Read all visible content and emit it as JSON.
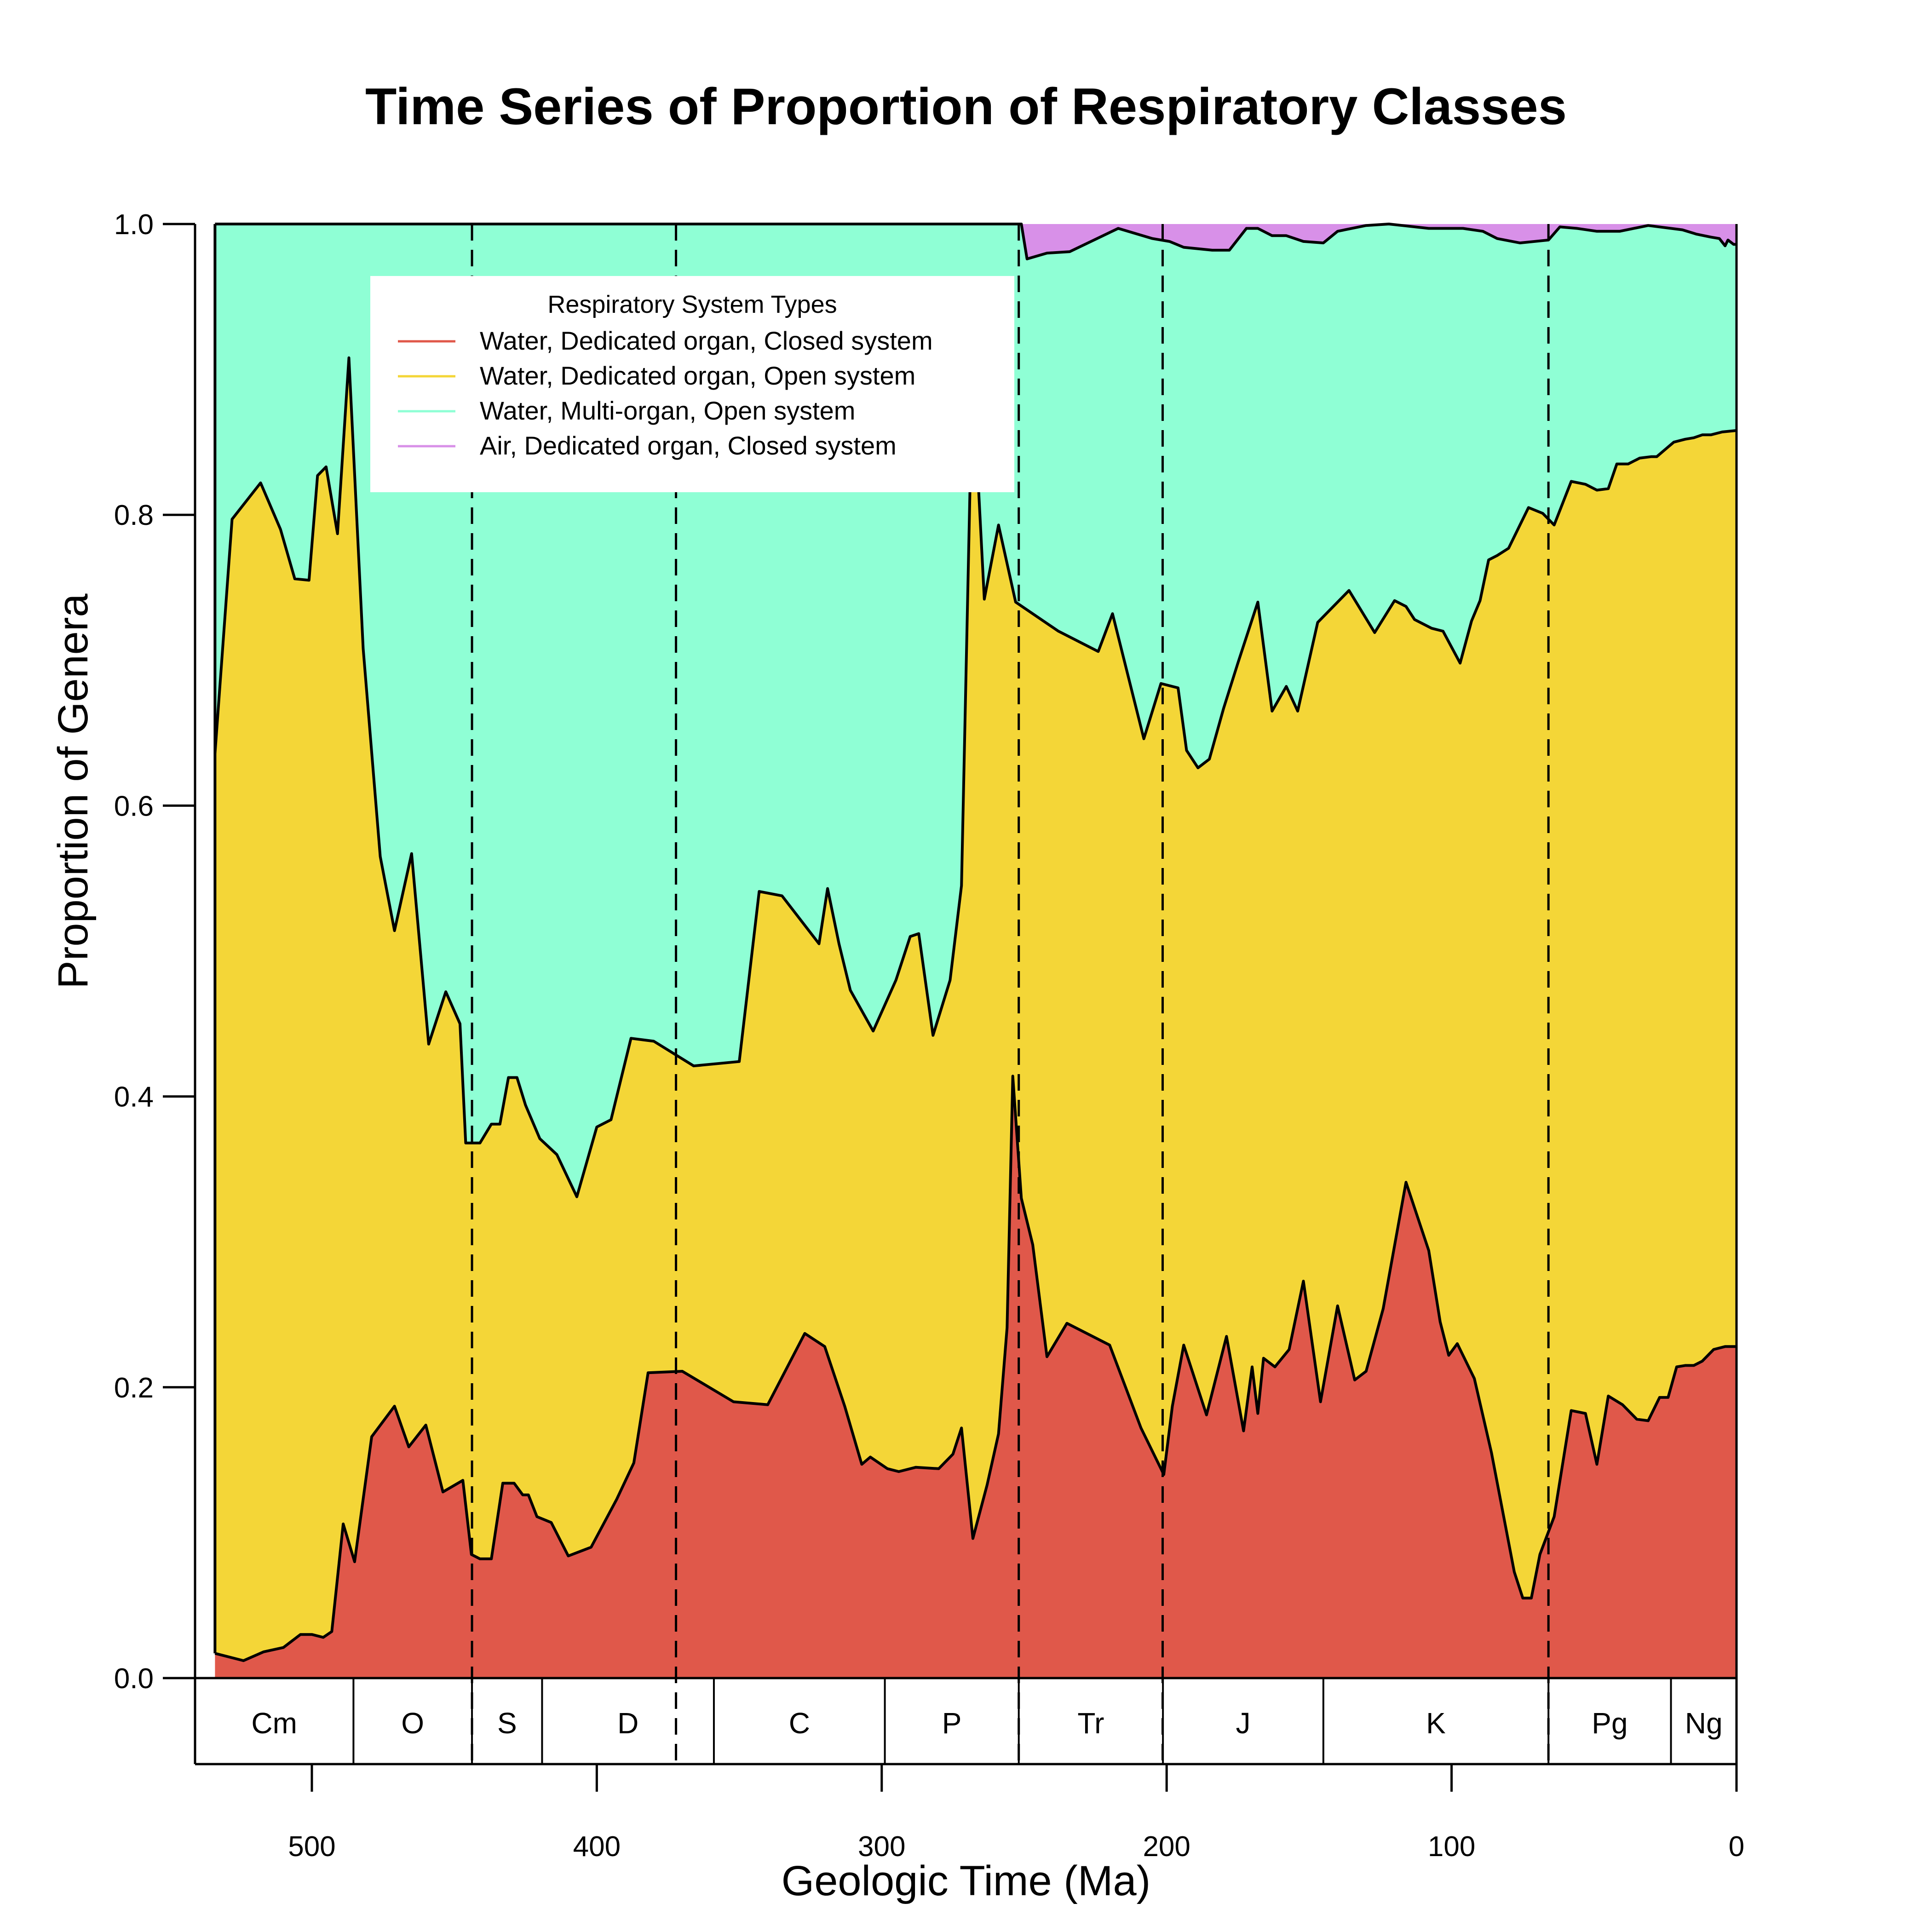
{
  "chart_data": {
    "type": "area",
    "stacked": true,
    "title": "Time Series of Proportion of Respiratory Classes",
    "xlabel": "Geologic Time (Ma)",
    "ylabel": "Proportion of Genera",
    "xlim": [
      541,
      0
    ],
    "ylim": [
      0,
      1
    ],
    "x_ticks": [
      500,
      400,
      300,
      200,
      100,
      0
    ],
    "y_ticks": [
      "0.0",
      "0.2",
      "0.4",
      "0.6",
      "0.8",
      "1.0"
    ],
    "legend": {
      "title": "Respiratory System Types",
      "position": "top-left",
      "entries": [
        "Water, Dedicated organ, Closed system",
        "Water, Dedicated organ, Open system",
        "Water, Multi-organ, Open system",
        "Air, Dedicated organ, Closed system"
      ]
    },
    "series": [
      {
        "name": "Water, Dedicated organ, Closed system",
        "color": "#E0584A"
      },
      {
        "name": "Water, Dedicated organ, Open system",
        "color": "#F4D637"
      },
      {
        "name": "Water, Multi-organ, Open system",
        "color": "#8FFFD5"
      },
      {
        "name": "Air, Dedicated organ, Closed system",
        "color": "#D890E8"
      }
    ],
    "cumulative_boundaries": {
      "red_top": [
        [
          534,
          0.017
        ],
        [
          524,
          0.012
        ],
        [
          517,
          0.018
        ],
        [
          510,
          0.021
        ],
        [
          504,
          0.03
        ],
        [
          500,
          0.03
        ],
        [
          496,
          0.028
        ],
        [
          493,
          0.032
        ],
        [
          489,
          0.106
        ],
        [
          485,
          0.08
        ],
        [
          479,
          0.166
        ],
        [
          471,
          0.187
        ],
        [
          466,
          0.159
        ],
        [
          460,
          0.174
        ],
        [
          454,
          0.128
        ],
        [
          447,
          0.136
        ],
        [
          444,
          0.085
        ],
        [
          441,
          0.082
        ],
        [
          437,
          0.082
        ],
        [
          433,
          0.134
        ],
        [
          429,
          0.134
        ],
        [
          426,
          0.126
        ],
        [
          424,
          0.126
        ],
        [
          421,
          0.111
        ],
        [
          416,
          0.107
        ],
        [
          410,
          0.084
        ],
        [
          402,
          0.09
        ],
        [
          393,
          0.123
        ],
        [
          387,
          0.148
        ],
        [
          382,
          0.21
        ],
        [
          370,
          0.211
        ],
        [
          352,
          0.19
        ],
        [
          340,
          0.188
        ],
        [
          327,
          0.237
        ],
        [
          320,
          0.228
        ],
        [
          313,
          0.187
        ],
        [
          307,
          0.147
        ],
        [
          304,
          0.152
        ],
        [
          298,
          0.144
        ],
        [
          294,
          0.142
        ],
        [
          288,
          0.145
        ],
        [
          280,
          0.144
        ],
        [
          275,
          0.154
        ],
        [
          272,
          0.172
        ],
        [
          268,
          0.096
        ],
        [
          263,
          0.133
        ],
        [
          259,
          0.168
        ],
        [
          256,
          0.241
        ],
        [
          254,
          0.414
        ],
        [
          251,
          0.33
        ],
        [
          247,
          0.298
        ],
        [
          242,
          0.221
        ],
        [
          235,
          0.244
        ],
        [
          220,
          0.229
        ],
        [
          209,
          0.172
        ],
        [
          201,
          0.14
        ],
        [
          198,
          0.187
        ],
        [
          194,
          0.229
        ],
        [
          186,
          0.181
        ],
        [
          179,
          0.235
        ],
        [
          173,
          0.17
        ],
        [
          170,
          0.214
        ],
        [
          168,
          0.182
        ],
        [
          166,
          0.22
        ],
        [
          162,
          0.214
        ],
        [
          157,
          0.226
        ],
        [
          152,
          0.273
        ],
        [
          146,
          0.19
        ],
        [
          140,
          0.256
        ],
        [
          134,
          0.205
        ],
        [
          130,
          0.211
        ],
        [
          124,
          0.254
        ],
        [
          116,
          0.341
        ],
        [
          108,
          0.294
        ],
        [
          104,
          0.245
        ],
        [
          101,
          0.222
        ],
        [
          98,
          0.23
        ],
        [
          92,
          0.206
        ],
        [
          86,
          0.155
        ],
        [
          78,
          0.073
        ],
        [
          75,
          0.055
        ],
        [
          72,
          0.055
        ],
        [
          69,
          0.085
        ],
        [
          64,
          0.111
        ],
        [
          58,
          0.184
        ],
        [
          53,
          0.182
        ],
        [
          49,
          0.147
        ],
        [
          45,
          0.194
        ],
        [
          40,
          0.188
        ],
        [
          35,
          0.178
        ],
        [
          31,
          0.177
        ],
        [
          27,
          0.193
        ],
        [
          24,
          0.193
        ],
        [
          21,
          0.214
        ],
        [
          18,
          0.215
        ],
        [
          15,
          0.215
        ],
        [
          12,
          0.218
        ],
        [
          8,
          0.226
        ],
        [
          4,
          0.228
        ],
        [
          0,
          0.228
        ]
      ],
      "yellow_top": [
        [
          534,
          0.636
        ],
        [
          528,
          0.797
        ],
        [
          518,
          0.822
        ],
        [
          511,
          0.79
        ],
        [
          506,
          0.756
        ],
        [
          501,
          0.755
        ],
        [
          498,
          0.827
        ],
        [
          495,
          0.833
        ],
        [
          491,
          0.787
        ],
        [
          487,
          0.908
        ],
        [
          482,
          0.708
        ],
        [
          476,
          0.565
        ],
        [
          471,
          0.514
        ],
        [
          465,
          0.567
        ],
        [
          459,
          0.436
        ],
        [
          453,
          0.472
        ],
        [
          448,
          0.45
        ],
        [
          446,
          0.368
        ],
        [
          441,
          0.368
        ],
        [
          437,
          0.381
        ],
        [
          434,
          0.381
        ],
        [
          431,
          0.413
        ],
        [
          428,
          0.413
        ],
        [
          425,
          0.394
        ],
        [
          420,
          0.371
        ],
        [
          414,
          0.36
        ],
        [
          407,
          0.331
        ],
        [
          400,
          0.379
        ],
        [
          395,
          0.384
        ],
        [
          388,
          0.44
        ],
        [
          380,
          0.438
        ],
        [
          366,
          0.421
        ],
        [
          350,
          0.424
        ],
        [
          343,
          0.541
        ],
        [
          335,
          0.538
        ],
        [
          322,
          0.505
        ],
        [
          319,
          0.543
        ],
        [
          315,
          0.505
        ],
        [
          311,
          0.473
        ],
        [
          303,
          0.445
        ],
        [
          295,
          0.48
        ],
        [
          290,
          0.51
        ],
        [
          287,
          0.512
        ],
        [
          282,
          0.442
        ],
        [
          276,
          0.48
        ],
        [
          272,
          0.545
        ],
        [
          269,
          0.82
        ],
        [
          267,
          0.855
        ],
        [
          264,
          0.742
        ],
        [
          259,
          0.793
        ],
        [
          253,
          0.74
        ],
        [
          238,
          0.72
        ],
        [
          224,
          0.706
        ],
        [
          219,
          0.732
        ],
        [
          208,
          0.646
        ],
        [
          202,
          0.684
        ],
        [
          196,
          0.681
        ],
        [
          193,
          0.638
        ],
        [
          189,
          0.626
        ],
        [
          185,
          0.632
        ],
        [
          180,
          0.667
        ],
        [
          175,
          0.698
        ],
        [
          168,
          0.74
        ],
        [
          163,
          0.665
        ],
        [
          158,
          0.682
        ],
        [
          154,
          0.665
        ],
        [
          147,
          0.726
        ],
        [
          136,
          0.748
        ],
        [
          127,
          0.719
        ],
        [
          120,
          0.741
        ],
        [
          116,
          0.737
        ],
        [
          113,
          0.728
        ],
        [
          107,
          0.722
        ],
        [
          103,
          0.72
        ],
        [
          97,
          0.698
        ],
        [
          93,
          0.727
        ],
        [
          90,
          0.741
        ],
        [
          87,
          0.769
        ],
        [
          84,
          0.772
        ],
        [
          80,
          0.777
        ],
        [
          73,
          0.805
        ],
        [
          68,
          0.801
        ],
        [
          64,
          0.793
        ],
        [
          58,
          0.823
        ],
        [
          53,
          0.821
        ],
        [
          49,
          0.817
        ],
        [
          45,
          0.818
        ],
        [
          42,
          0.835
        ],
        [
          38,
          0.835
        ],
        [
          34,
          0.839
        ],
        [
          30,
          0.84
        ],
        [
          28,
          0.84
        ],
        [
          25,
          0.845
        ],
        [
          22,
          0.85
        ],
        [
          18,
          0.852
        ],
        [
          15,
          0.853
        ],
        [
          12,
          0.855
        ],
        [
          9,
          0.855
        ],
        [
          5,
          0.857
        ],
        [
          0,
          0.858
        ]
      ],
      "green_top": [
        [
          534,
          1.0
        ],
        [
          251,
          1.0
        ],
        [
          249,
          0.976
        ],
        [
          242,
          0.98
        ],
        [
          234,
          0.981
        ],
        [
          217,
          0.997
        ],
        [
          205,
          0.99
        ],
        [
          199,
          0.988
        ],
        [
          194,
          0.984
        ],
        [
          184,
          0.982
        ],
        [
          178,
          0.982
        ],
        [
          172,
          0.997
        ],
        [
          168,
          0.997
        ],
        [
          163,
          0.992
        ],
        [
          158,
          0.992
        ],
        [
          152,
          0.988
        ],
        [
          145,
          0.987
        ],
        [
          140,
          0.995
        ],
        [
          130,
          0.999
        ],
        [
          122,
          1.0
        ],
        [
          108,
          0.997
        ],
        [
          96,
          0.997
        ],
        [
          89,
          0.995
        ],
        [
          84,
          0.99
        ],
        [
          76,
          0.987
        ],
        [
          66,
          0.989
        ],
        [
          62,
          0.998
        ],
        [
          56,
          0.997
        ],
        [
          49,
          0.995
        ],
        [
          41,
          0.995
        ],
        [
          31,
          0.999
        ],
        [
          19,
          0.996
        ],
        [
          14,
          0.993
        ],
        [
          9,
          0.991
        ],
        [
          6,
          0.99
        ],
        [
          4,
          0.985
        ],
        [
          3,
          0.989
        ],
        [
          1,
          0.986
        ],
        [
          0,
          0.986
        ]
      ]
    },
    "dashed_boundaries_ma": [
      443.8,
      372.2,
      251.9,
      201.4,
      66.0
    ],
    "periods": [
      {
        "label": "Cm",
        "start": 541,
        "end": 485.4
      },
      {
        "label": "O",
        "start": 485.4,
        "end": 443.8
      },
      {
        "label": "S",
        "start": 443.8,
        "end": 419.2
      },
      {
        "label": "D",
        "start": 419.2,
        "end": 358.9
      },
      {
        "label": "C",
        "start": 358.9,
        "end": 298.9
      },
      {
        "label": "P",
        "start": 298.9,
        "end": 251.9
      },
      {
        "label": "Tr",
        "start": 251.9,
        "end": 201.3
      },
      {
        "label": "J",
        "start": 201.3,
        "end": 145.0
      },
      {
        "label": "K",
        "start": 145.0,
        "end": 66.0
      },
      {
        "label": "Pg",
        "start": 66.0,
        "end": 23.0
      },
      {
        "label": "Ng",
        "start": 23.0,
        "end": 0
      }
    ]
  }
}
